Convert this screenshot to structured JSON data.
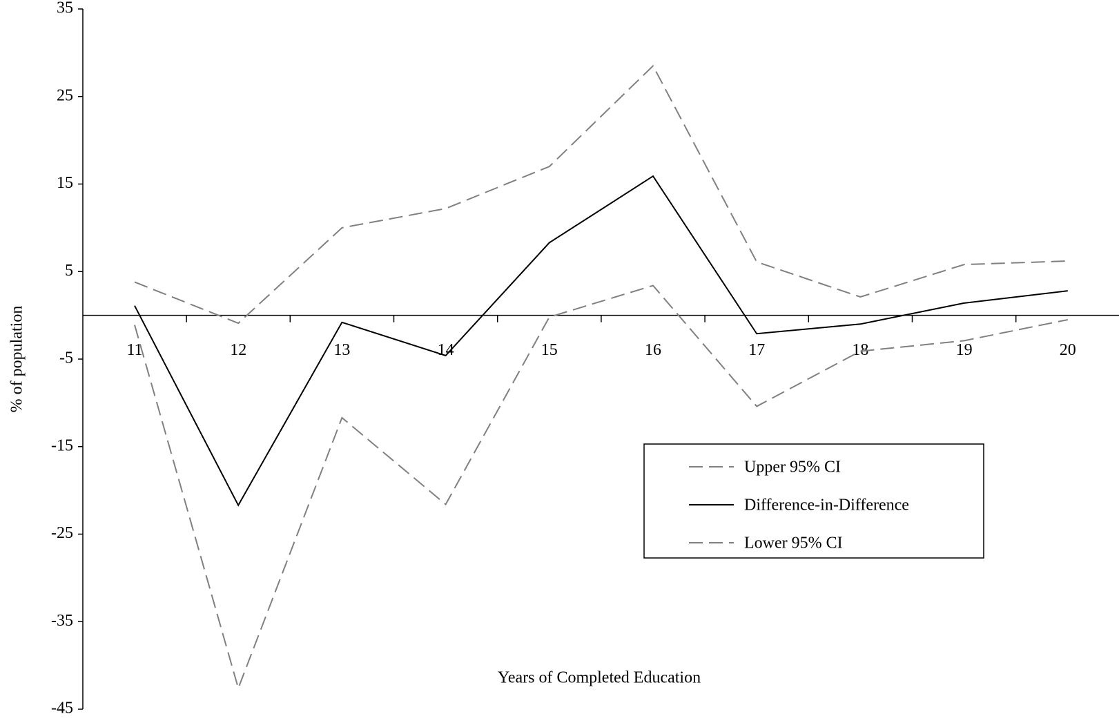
{
  "chart_data": {
    "type": "line",
    "x_label": "Years of Completed Education",
    "y_label": "% of population",
    "categories": [
      "11",
      "12",
      "13",
      "14",
      "15",
      "16",
      "17",
      "18",
      "19",
      "20"
    ],
    "series": [
      {
        "name": "Upper 95% CI",
        "color": "#808080",
        "dashed": true,
        "values": [
          3.8,
          -0.9,
          10,
          12.2,
          17,
          28.5,
          6.1,
          2.1,
          5.8,
          6.2
        ]
      },
      {
        "name": "Difference-in-Difference",
        "color": "#000000",
        "dashed": false,
        "values": [
          1.1,
          -21.7,
          -0.8,
          -4.6,
          8.3,
          15.9,
          -2.1,
          -1.0,
          1.4,
          2.8
        ]
      },
      {
        "name": "Lower 95% CI",
        "color": "#808080",
        "dashed": true,
        "values": [
          -1.1,
          -42.6,
          -11.7,
          -21.6,
          -0.2,
          3.4,
          -10.4,
          -4.1,
          -2.9,
          -0.5
        ]
      }
    ],
    "ylim": [
      -45,
      35
    ],
    "yticks": [
      35,
      25,
      15,
      5,
      -5,
      -15,
      -25,
      -35,
      -45
    ],
    "legend": "lower-right"
  }
}
